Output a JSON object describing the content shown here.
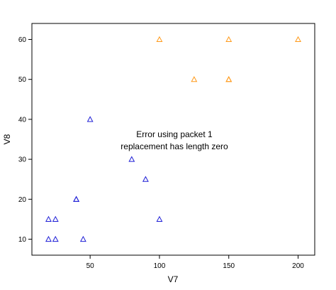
{
  "chart_data": {
    "type": "scatter",
    "title": "",
    "xlabel": "V7",
    "ylabel": "V8",
    "xlim": [
      8,
      212
    ],
    "ylim": [
      6,
      64
    ],
    "x_ticks": [
      50,
      100,
      150,
      200
    ],
    "y_ticks": [
      10,
      20,
      30,
      40,
      50,
      60
    ],
    "grid": false,
    "marker": "triangle-open",
    "annotation": [
      "Error using packet 1",
      "replacement has length zero"
    ],
    "series": [
      {
        "color": "#1f1fd6",
        "points": [
          {
            "x": 20,
            "y": 15
          },
          {
            "x": 25,
            "y": 15
          },
          {
            "x": 20,
            "y": 10
          },
          {
            "x": 25,
            "y": 10
          },
          {
            "x": 45,
            "y": 10
          },
          {
            "x": 40,
            "y": 20
          },
          {
            "x": 40,
            "y": 20
          },
          {
            "x": 50,
            "y": 40
          },
          {
            "x": 80,
            "y": 30
          },
          {
            "x": 90,
            "y": 25
          },
          {
            "x": 100,
            "y": 15
          }
        ]
      },
      {
        "color": "#ff9a1a",
        "points": [
          {
            "x": 100,
            "y": 60
          },
          {
            "x": 150,
            "y": 60
          },
          {
            "x": 200,
            "y": 60
          },
          {
            "x": 125,
            "y": 50
          },
          {
            "x": 150,
            "y": 50
          },
          {
            "x": 150,
            "y": 50
          }
        ]
      }
    ]
  }
}
